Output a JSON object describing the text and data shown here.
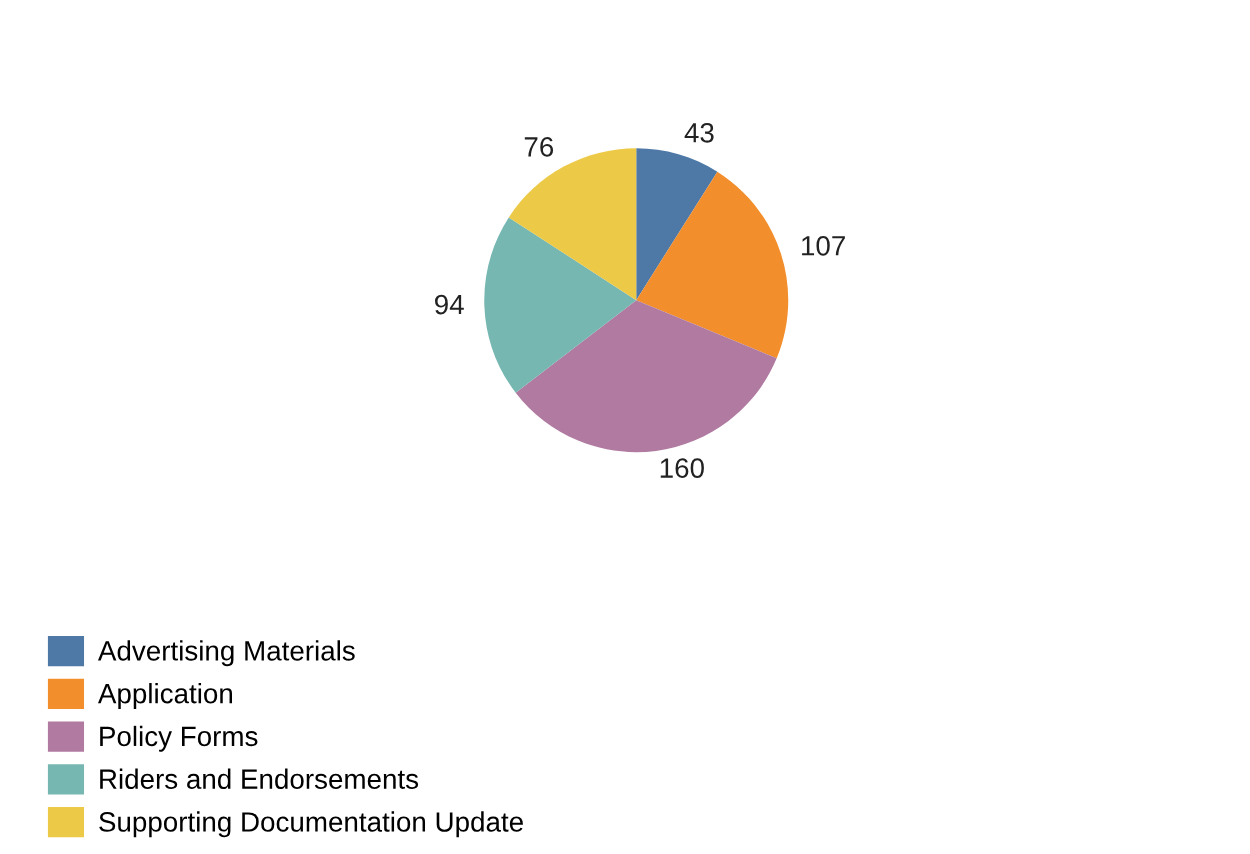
{
  "chart_data": {
    "type": "pie",
    "categories": [
      "Advertising Materials",
      "Application",
      "Policy Forms",
      "Riders and Endorsements",
      "Supporting Documentation Update"
    ],
    "values": [
      43,
      107,
      160,
      94,
      76
    ],
    "colors": [
      "#4e79a7",
      "#f28e2b",
      "#b07aa1",
      "#76b7b2",
      "#edc948"
    ],
    "data_labels": true,
    "legend": "bottom left"
  }
}
